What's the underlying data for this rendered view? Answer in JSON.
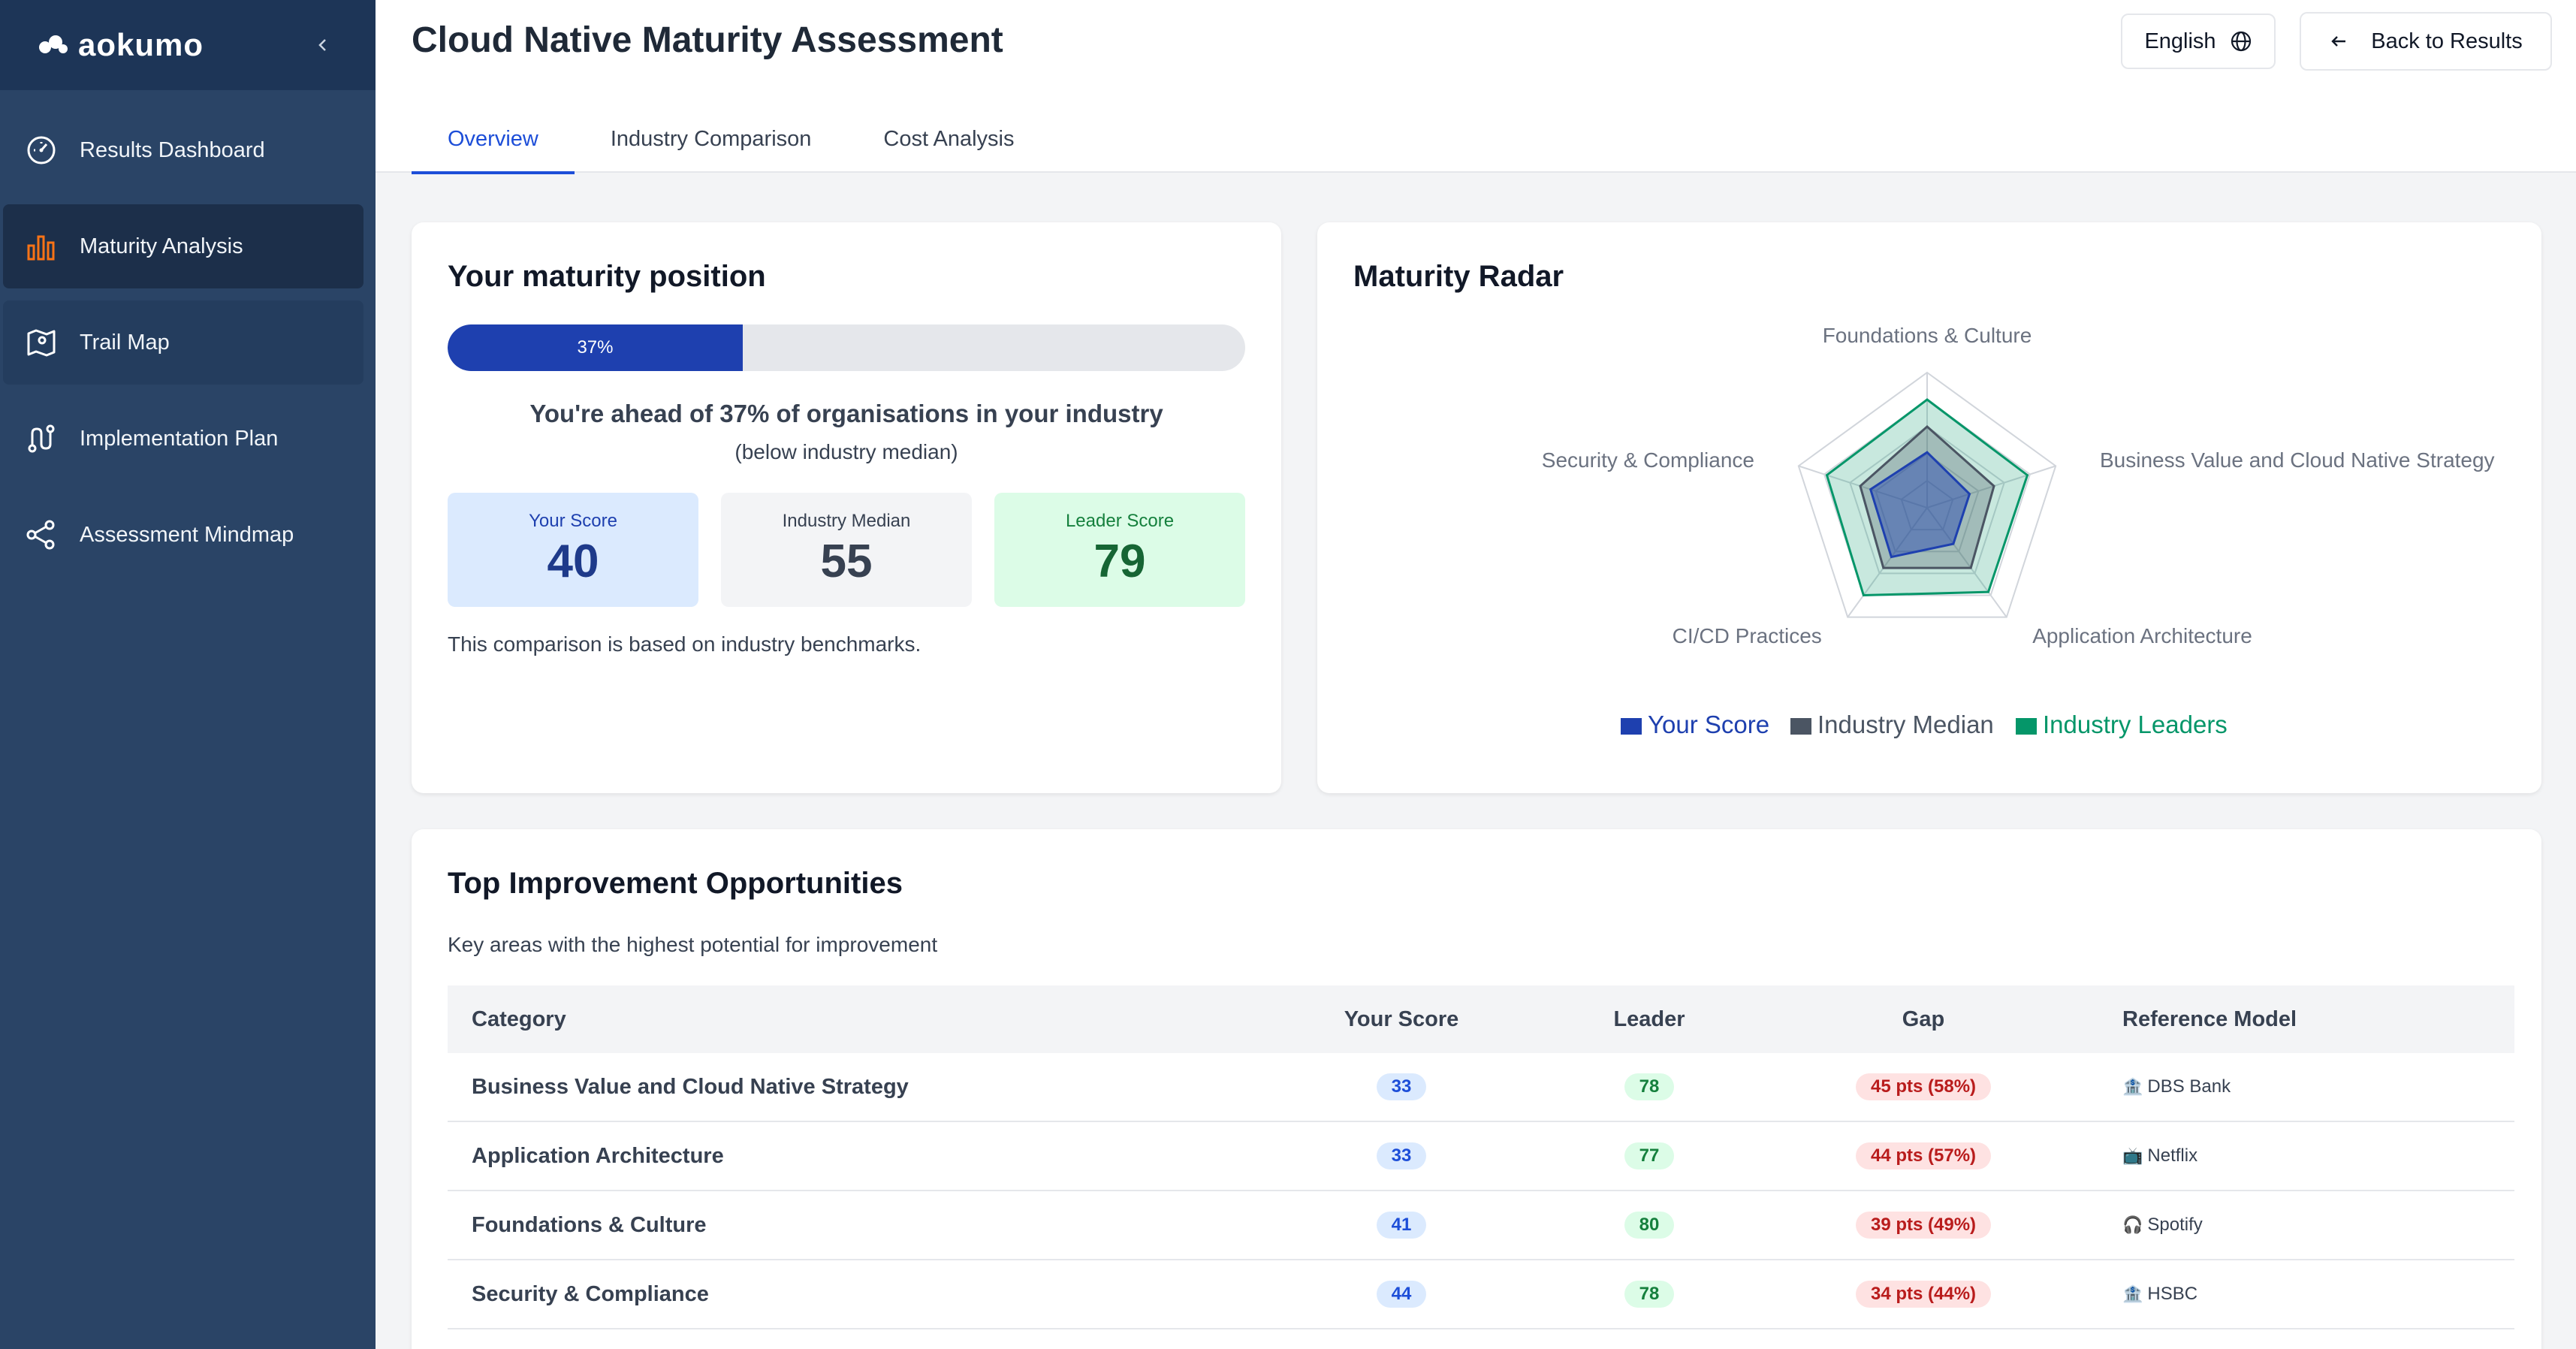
{
  "app": {
    "logo_text": "aokumo"
  },
  "sidebar": {
    "items": [
      {
        "label": "Results Dashboard",
        "icon": "gauge-icon"
      },
      {
        "label": "Maturity Analysis",
        "icon": "bar-chart-icon"
      },
      {
        "label": "Trail Map",
        "icon": "map-icon"
      },
      {
        "label": "Implementation Plan",
        "icon": "route-icon"
      },
      {
        "label": "Assessment Mindmap",
        "icon": "share-nodes-icon"
      }
    ]
  },
  "header": {
    "title": "Cloud Native Maturity Assessment",
    "language": "English",
    "back_label": "Back to Results",
    "tabs": [
      "Overview",
      "Industry Comparison",
      "Cost Analysis"
    ]
  },
  "position": {
    "title": "Your maturity position",
    "percentile": 37,
    "percentile_label": "37%",
    "ahead_text": "You're ahead of 37% of organisations in your industry",
    "below_text": "(below industry median)",
    "your_score_label": "Your Score",
    "your_score": "40",
    "median_label": "Industry Median",
    "median": "55",
    "leader_label": "Leader Score",
    "leader": "79",
    "note": "This comparison is based on industry benchmarks."
  },
  "radar": {
    "title": "Maturity Radar",
    "axes": [
      "Foundations & Culture",
      "Business Value and Cloud Native Strategy",
      "Application Architecture",
      "CI/CD Practices",
      "Security & Compliance"
    ],
    "legend": [
      "Your Score",
      "Industry Median",
      "Industry Leaders"
    ],
    "colors": {
      "you": "#1e40af",
      "median": "#4b5563",
      "leaders": "#059669"
    }
  },
  "chart_data": {
    "type": "radar",
    "categories": [
      "Foundations & Culture",
      "Business Value and Cloud Native Strategy",
      "Application Architecture",
      "CI/CD Practices",
      "Security & Compliance"
    ],
    "series": [
      {
        "name": "Your Score",
        "values": [
          41,
          33,
          33,
          45,
          44
        ]
      },
      {
        "name": "Industry Median",
        "values": [
          60,
          52,
          55,
          55,
          52
        ]
      },
      {
        "name": "Industry Leaders",
        "values": [
          80,
          78,
          77,
          80,
          78
        ]
      }
    ],
    "ylim": [
      0,
      100
    ],
    "legend": "bottom"
  },
  "opportunities": {
    "title": "Top Improvement Opportunities",
    "subtitle": "Key areas with the highest potential for improvement",
    "columns": [
      "Category",
      "Your Score",
      "Leader",
      "Gap",
      "Reference Model"
    ],
    "rows": [
      {
        "category": "Business Value and Cloud Native Strategy",
        "score": "33",
        "leader": "78",
        "gap": "45 pts (58%)",
        "ref_icon": "🏦",
        "ref": "DBS Bank"
      },
      {
        "category": "Application Architecture",
        "score": "33",
        "leader": "77",
        "gap": "44 pts (57%)",
        "ref_icon": "📺",
        "ref": "Netflix"
      },
      {
        "category": "Foundations & Culture",
        "score": "41",
        "leader": "80",
        "gap": "39 pts (49%)",
        "ref_icon": "🎧",
        "ref": "Spotify"
      },
      {
        "category": "Security & Compliance",
        "score": "44",
        "leader": "78",
        "gap": "34 pts (44%)",
        "ref_icon": "🏦",
        "ref": "HSBC"
      }
    ]
  }
}
